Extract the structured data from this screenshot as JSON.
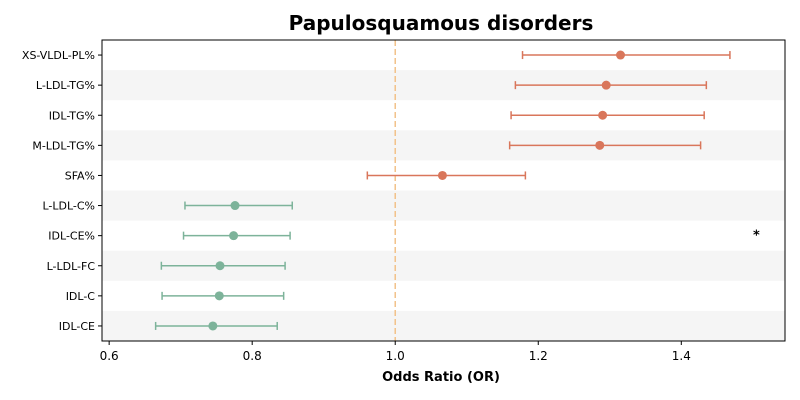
{
  "chart_data": {
    "type": "forest",
    "title": "Papulosquamous disorders",
    "xlabel": "Odds Ratio (OR)",
    "xlim": [
      0.59,
      1.545
    ],
    "xticks": [
      0.6,
      0.8,
      1.0,
      1.2,
      1.4
    ],
    "reference_line": 1.0,
    "colors": {
      "positive": "#d9765b",
      "negative": "#7db39a",
      "reference": "#f2c28a",
      "band": "#f5f5f5"
    },
    "rows": [
      {
        "label": "XS-VLDL-PL%",
        "or": 1.315,
        "lo": 1.178,
        "hi": 1.468
      },
      {
        "label": "L-LDL-TG%",
        "or": 1.295,
        "lo": 1.168,
        "hi": 1.435
      },
      {
        "label": "IDL-TG%",
        "or": 1.29,
        "lo": 1.162,
        "hi": 1.432
      },
      {
        "label": "M-LDL-TG%",
        "or": 1.286,
        "lo": 1.16,
        "hi": 1.427
      },
      {
        "label": "SFA%",
        "or": 1.066,
        "lo": 0.961,
        "hi": 1.182
      },
      {
        "label": "L-LDL-C%",
        "or": 0.776,
        "lo": 0.706,
        "hi": 0.856
      },
      {
        "label": "IDL-CE%",
        "or": 0.774,
        "lo": 0.704,
        "hi": 0.853
      },
      {
        "label": "L-LDL-FC",
        "or": 0.755,
        "lo": 0.673,
        "hi": 0.846
      },
      {
        "label": "IDL-C",
        "or": 0.754,
        "lo": 0.674,
        "hi": 0.844
      },
      {
        "label": "IDL-CE",
        "or": 0.745,
        "lo": 0.665,
        "hi": 0.835
      }
    ],
    "annotations": [
      {
        "text": "*",
        "row": "IDL-CE%",
        "x": 1.505
      }
    ]
  }
}
